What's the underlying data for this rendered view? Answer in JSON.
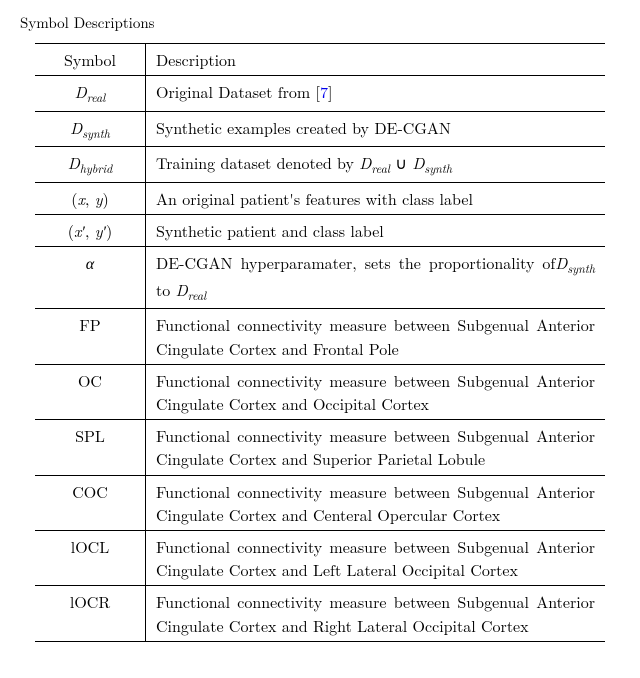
{
  "caption": "Symbol Descriptions",
  "cite_num": "7",
  "cite_color": "#0000ee",
  "header": {
    "symbol": "Symbol",
    "description": "Description"
  },
  "rows": [
    {
      "symbol_html": "<span class='math'>D</span><span class='sub'>real</span>",
      "desc_html": "Original Dataset from [<a class='cite' data-name='citation-link' data-interactable='true' href='#'>7</a>]"
    },
    {
      "symbol_html": "<span class='math'>D</span><span class='sub'>synth</span>",
      "desc_html": "Synthetic examples created by DE-CGAN"
    },
    {
      "symbol_html": "<span class='math'>D</span><span class='sub'>hybrid</span>",
      "desc_html": "Training dataset denoted by <span class='math'>D</span><span class='sub'>real</span> ∪ <span class='math'>D</span><span class='sub'>synth</span>"
    },
    {
      "symbol_html": "(<span class='math'>x</span>, <span class='math'>y</span>)",
      "desc_html": "An original patient's features with class label"
    },
    {
      "symbol_html": "(<span class='math'>x′</span>, <span class='math'>y′</span>)",
      "desc_html": "Synthetic patient and class label"
    },
    {
      "symbol_html": "<span class='math'>α</span>",
      "desc_html": "DE-CGAN hyperparamater, sets the proportionality of<span class='math'>D</span><span class='sub'>synth</span> to <span class='math'>D</span><span class='sub'>real</span>"
    },
    {
      "symbol_html": "FP",
      "desc_html": "Functional connectivity measure between Subgenual Anterior Cingulate Cortex and Frontal Pole"
    },
    {
      "symbol_html": "OC",
      "desc_html": "Functional connectivity measure between Subgenual Anterior Cingulate Cortex and Occipital Cortex"
    },
    {
      "symbol_html": "SPL",
      "desc_html": "Functional connectivity measure between Subgenual Anterior Cingulate Cortex and Superior Parietal Lobule"
    },
    {
      "symbol_html": "COC",
      "desc_html": "Functional connectivity measure between Subgenual Anterior Cingulate Cortex and Centeral Opercular Cortex"
    },
    {
      "symbol_html": "lOCL",
      "desc_html": "Functional connectivity measure between Subgenual Anterior Cingulate Cortex and Left Lateral Occipital Cortex"
    },
    {
      "symbol_html": "lOCR",
      "desc_html": "Functional connectivity measure between Subgenual Anterior Cingulate Cortex and Right Lateral Occipital Cortex"
    }
  ]
}
